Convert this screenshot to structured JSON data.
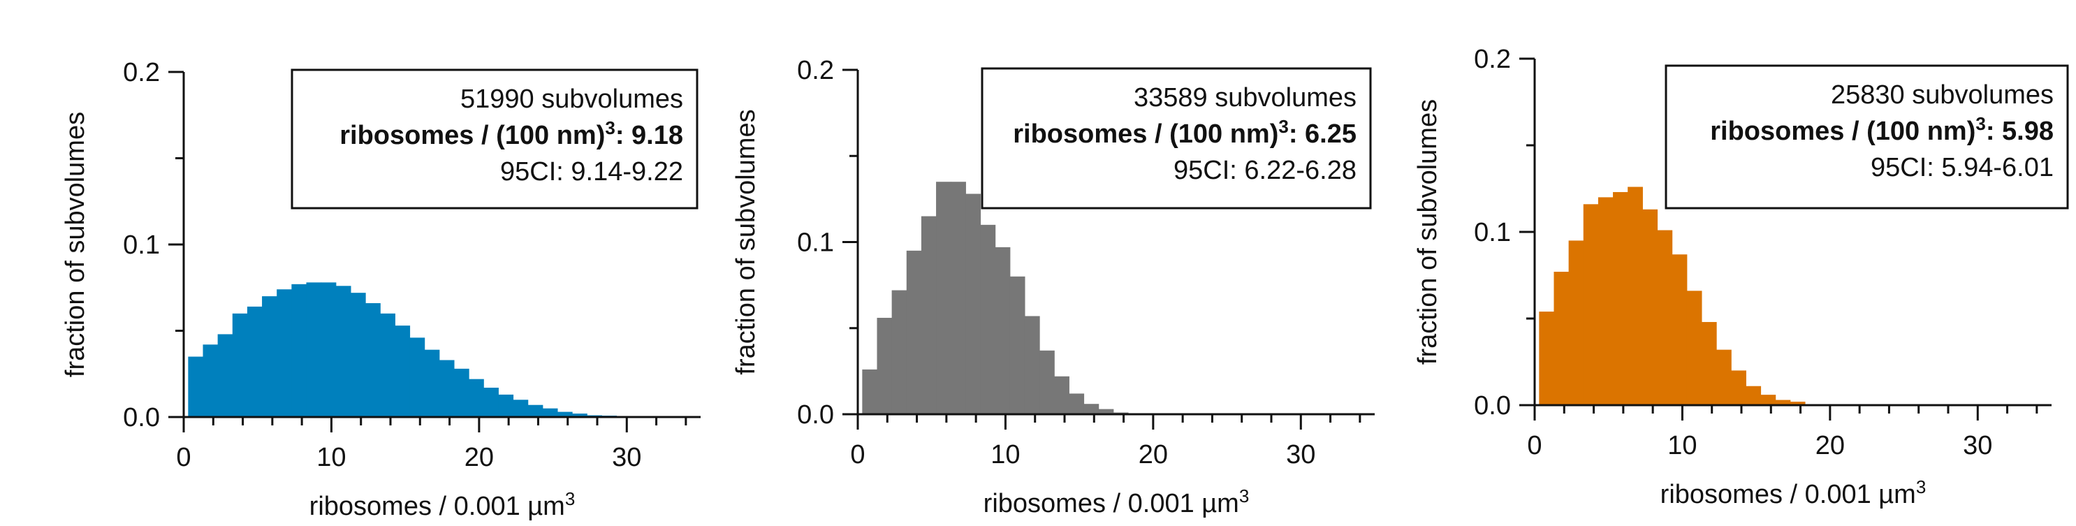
{
  "chart_data": [
    {
      "type": "bar",
      "title": "",
      "xlabel": "ribosomes / 0.001 µm",
      "xlabel_sup": "3",
      "ylabel": "fraction of subvolumes",
      "xlim": [
        0,
        35
      ],
      "ylim": [
        0,
        0.2
      ],
      "x_ticks": [
        "0",
        "10",
        "20",
        "30"
      ],
      "y_ticks": [
        "0.0",
        "0.1",
        "0.2"
      ],
      "color": "#0080BD",
      "bin_width": 1,
      "values": [
        0.035,
        0.042,
        0.048,
        0.06,
        0.064,
        0.07,
        0.074,
        0.077,
        0.078,
        0.078,
        0.076,
        0.072,
        0.066,
        0.06,
        0.053,
        0.046,
        0.039,
        0.033,
        0.028,
        0.022,
        0.017,
        0.013,
        0.01,
        0.007,
        0.005,
        0.003,
        0.002,
        0.001,
        0.0008,
        0.0005
      ],
      "annotation": {
        "count": "51990 subvolumes",
        "density_prefix": "ribosomes / (100 nm)",
        "density_sup": "3",
        "density_value": ": 9.18",
        "ci": "95CI: 9.14-9.22"
      }
    },
    {
      "type": "bar",
      "title": "",
      "xlabel": "ribosomes / 0.001 µm",
      "xlabel_sup": "3",
      "ylabel": "fraction of subvolumes",
      "xlim": [
        0,
        35
      ],
      "ylim": [
        0,
        0.2
      ],
      "x_ticks": [
        "0",
        "10",
        "20",
        "30"
      ],
      "y_ticks": [
        "0.0",
        "0.1",
        "0.2"
      ],
      "color": "#777777",
      "bin_width": 1,
      "values": [
        0.026,
        0.056,
        0.072,
        0.095,
        0.115,
        0.135,
        0.135,
        0.128,
        0.11,
        0.097,
        0.08,
        0.057,
        0.037,
        0.022,
        0.012,
        0.006,
        0.003,
        0.001
      ],
      "annotation": {
        "count": "33589 subvolumes",
        "density_prefix": "ribosomes / (100 nm)",
        "density_sup": "3",
        "density_value": ": 6.25",
        "ci": "95CI: 6.22-6.28"
      }
    },
    {
      "type": "bar",
      "title": "",
      "xlabel": "ribosomes / 0.001 µm",
      "xlabel_sup": "3",
      "ylabel": "fraction of subvolumes",
      "xlim": [
        0,
        35
      ],
      "ylim": [
        0,
        0.2
      ],
      "x_ticks": [
        "0",
        "10",
        "20",
        "30"
      ],
      "y_ticks": [
        "0.0",
        "0.1",
        "0.2"
      ],
      "color": "#DB7400",
      "bin_width": 1,
      "values": [
        0.054,
        0.077,
        0.095,
        0.116,
        0.12,
        0.123,
        0.126,
        0.113,
        0.101,
        0.087,
        0.066,
        0.048,
        0.032,
        0.02,
        0.011,
        0.006,
        0.003,
        0.002
      ],
      "annotation": {
        "count": "25830 subvolumes",
        "density_prefix": "ribosomes / (100 nm)",
        "density_sup": "3",
        "density_value": ": 5.98",
        "ci": "95CI: 5.94-6.01"
      }
    }
  ]
}
